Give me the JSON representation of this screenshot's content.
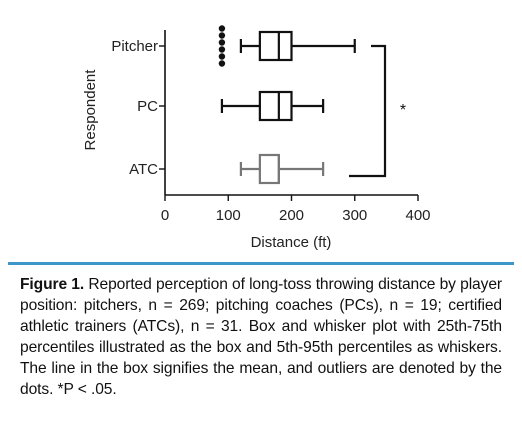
{
  "chart_data": {
    "type": "box",
    "orientation": "horizontal",
    "ylabel": "Respondent",
    "xlabel": "Distance (ft)",
    "xlim": [
      0,
      400
    ],
    "x_ticks": [
      0,
      100,
      200,
      300,
      400
    ],
    "categories": [
      "Pitcher",
      "PC",
      "ATC"
    ],
    "series": [
      {
        "category": "Pitcher",
        "whisker_low": 120,
        "q1": 150,
        "mean": 180,
        "q3": 200,
        "whisker_high": 300,
        "outliers": [
          90,
          90,
          90,
          90,
          90,
          90
        ]
      },
      {
        "category": "PC",
        "whisker_low": 90,
        "q1": 150,
        "mean": 180,
        "q3": 200,
        "whisker_high": 250,
        "outliers": []
      },
      {
        "category": "ATC",
        "whisker_low": 120,
        "q1": 150,
        "mean": 180,
        "q3": 180,
        "whisker_high": 250,
        "outliers": []
      }
    ],
    "series_colors": [
      "#111111",
      "#111111",
      "#777777"
    ],
    "significance": {
      "between": [
        "Pitcher",
        "ATC"
      ],
      "label": "*"
    },
    "grid": false
  },
  "caption": {
    "label": "Figure 1.",
    "text": " Reported perception of long-toss throwing distance by player position: pitchers, n = 269; pitching coaches (PCs), n = 19; certified athletic trainers (ATCs), n = 31. Box and whisker plot with 25th-75th percentiles illustrated as the box and 5th-95th percentiles as whiskers. The line in the box signifies the mean, and outliers are denoted by the dots. *P < .05."
  },
  "colors": {
    "caption_rule": "#3f97c9"
  }
}
